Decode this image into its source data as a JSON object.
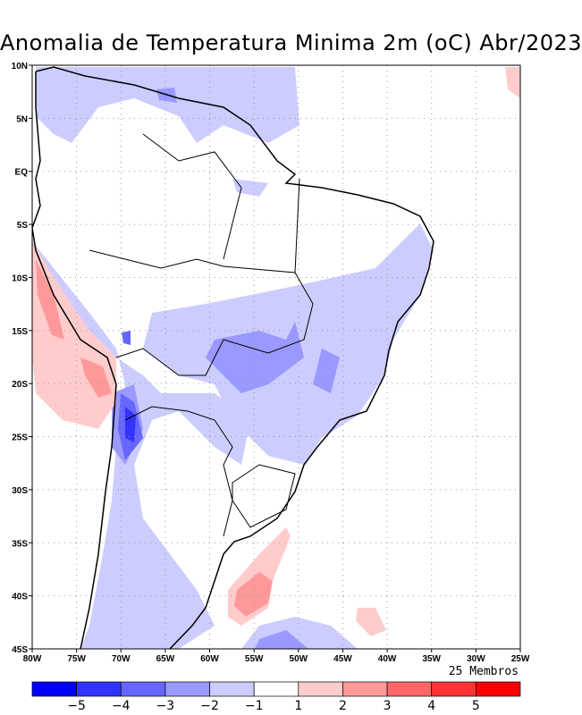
{
  "title": "Anomalia de Temperatura Minima 2m (oC) Abr/2023",
  "members_label": "25 Membros",
  "chart_data": {
    "type": "heatmap",
    "title": "Anomalia de Temperatura Minima 2m (oC) Abr/2023",
    "lon_range": [
      -80,
      -25
    ],
    "lat_range": [
      -45,
      10
    ],
    "x_ticks": [
      "80W",
      "75W",
      "70W",
      "65W",
      "60W",
      "55W",
      "50W",
      "45W",
      "40W",
      "35W",
      "30W",
      "25W"
    ],
    "y_ticks": [
      "10N",
      "5N",
      "EQ",
      "5S",
      "10S",
      "15S",
      "20S",
      "25S",
      "30S",
      "35S",
      "40S",
      "45S"
    ],
    "grid": true,
    "colorbar": {
      "labels": [
        "-5",
        "-4",
        "-3",
        "-2",
        "-1",
        "1",
        "2",
        "3",
        "4",
        "5"
      ],
      "colors": [
        "#0000ff",
        "#3333ff",
        "#6666ff",
        "#9999ff",
        "#ccccff",
        "#ffffff",
        "#ffcccc",
        "#ff9999",
        "#ff6666",
        "#ff3333",
        "#ff0000"
      ]
    }
  }
}
